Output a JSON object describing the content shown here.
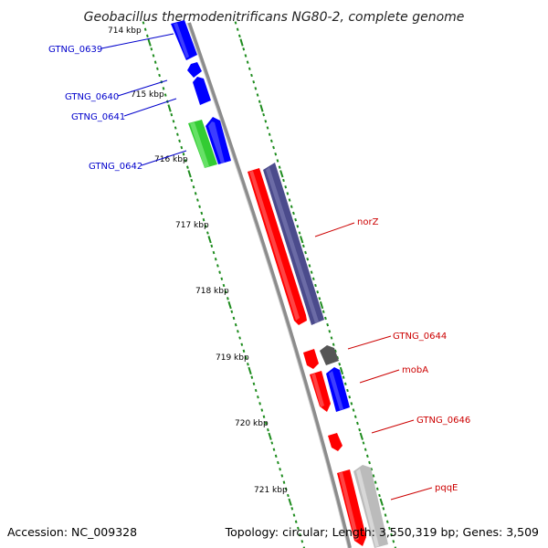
{
  "title": "Geobacillus thermodenitrificans NG80-2, complete genome",
  "footer": {
    "accession": "Accession: NC_009328",
    "info": "Topology: circular; Length: 3,550,319 bp; Genes: 3,509"
  },
  "colors": {
    "backbone": "#8c8c8c",
    "tick_dots": "#1e8c1e",
    "blue": "#0000ff",
    "green": "#33cc33",
    "red": "#ff0000",
    "slate": "#4b4b8c",
    "dark_gray": "#555555",
    "light_gray": "#bbbbbb",
    "label_blue": "#0000cc",
    "label_red": "#cc0000"
  },
  "ticks": [
    {
      "label": "714 kbp",
      "kbp": 714
    },
    {
      "label": "715 kbp",
      "kbp": 715
    },
    {
      "label": "716 kbp",
      "kbp": 716
    },
    {
      "label": "717 kbp",
      "kbp": 717
    },
    {
      "label": "718 kbp",
      "kbp": 718
    },
    {
      "label": "719 kbp",
      "kbp": 719
    },
    {
      "label": "720 kbp",
      "kbp": 720
    },
    {
      "label": "721 kbp",
      "kbp": 721
    }
  ],
  "gene_labels": [
    {
      "name": "GTNG_0639",
      "side": "left"
    },
    {
      "name": "GTNG_0640",
      "side": "left"
    },
    {
      "name": "GTNG_0641",
      "side": "left"
    },
    {
      "name": "GTNG_0642",
      "side": "left"
    },
    {
      "name": "norZ",
      "side": "right"
    },
    {
      "name": "GTNG_0644",
      "side": "right"
    },
    {
      "name": "mobA",
      "side": "right"
    },
    {
      "name": "GTNG_0646",
      "side": "right"
    },
    {
      "name": "pqqE",
      "side": "right"
    }
  ]
}
